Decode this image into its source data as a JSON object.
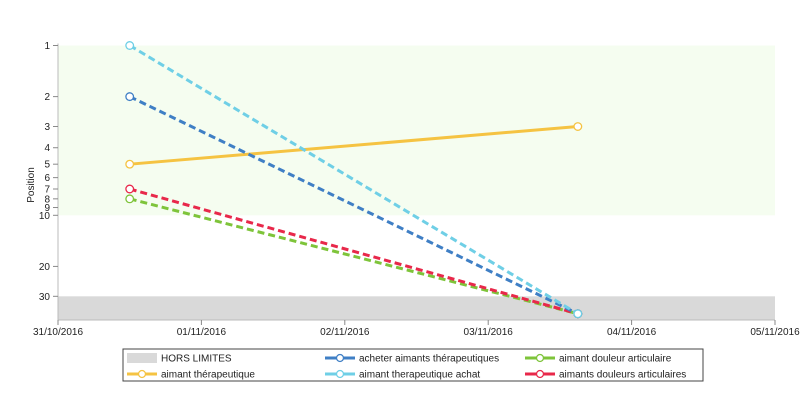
{
  "colors": {
    "plot_top_band": "#f5fdf0",
    "out_of_range_band": "#d9d9d9",
    "axis": "#bbbbbb"
  },
  "chart_data": {
    "type": "line",
    "title": "",
    "xlabel": "",
    "ylabel": "Position",
    "y_scale": "log",
    "y_reversed": true,
    "ylim": [
      1,
      45
    ],
    "yticks": [
      1,
      2,
      3,
      4,
      5,
      6,
      7,
      8,
      9,
      10,
      20,
      30
    ],
    "y_tick_labels": [
      "1",
      "2",
      "3",
      "4",
      "5",
      "6",
      "7",
      "8",
      "9",
      "10",
      "20",
      "30"
    ],
    "xlim": [
      "2016-10-31",
      "2016-11-05"
    ],
    "x_tick_labels": [
      "31/10/2016",
      "01/11/2016",
      "02/11/2016",
      "03/11/2016",
      "04/11/2016",
      "05/11/2016"
    ],
    "highlight_band": [
      1,
      10
    ],
    "out_of_range_band": [
      30,
      45
    ],
    "out_of_range_value": 38,
    "legend_position": "bottom",
    "legend": [
      "HORS LIMITES",
      "acheter aimants thérapeutiques",
      "aimant douleur articulaire",
      "aimant thérapeutique",
      "aimant therapeutique achat",
      "aimants douleurs articulaires"
    ],
    "series": [
      {
        "name": "acheter aimants thérapeutiques",
        "color": "#3f7fc5",
        "dashed": true,
        "points": [
          {
            "x": "2016-10-31T12:00",
            "y": 2
          },
          {
            "x": "2016-11-03T15:00",
            "y": "HORS LIMITES"
          }
        ]
      },
      {
        "name": "aimant douleur articulaire",
        "color": "#7ec43a",
        "dashed": true,
        "points": [
          {
            "x": "2016-10-31T12:00",
            "y": 8
          },
          {
            "x": "2016-11-03T15:00",
            "y": "HORS LIMITES"
          }
        ]
      },
      {
        "name": "aimant thérapeutique",
        "color": "#f5c342",
        "dashed": false,
        "points": [
          {
            "x": "2016-10-31T12:00",
            "y": 5
          },
          {
            "x": "2016-11-03T15:00",
            "y": 3
          }
        ]
      },
      {
        "name": "aimant therapeutique achat",
        "color": "#6fcfe6",
        "dashed": true,
        "points": [
          {
            "x": "2016-10-31T12:00",
            "y": 1
          },
          {
            "x": "2016-11-03T15:00",
            "y": "HORS LIMITES"
          }
        ]
      },
      {
        "name": "aimants douleurs articulaires",
        "color": "#e8284a",
        "dashed": true,
        "points": [
          {
            "x": "2016-10-31T12:00",
            "y": 7
          },
          {
            "x": "2016-11-03T15:00",
            "y": "HORS LIMITES"
          }
        ]
      }
    ]
  }
}
